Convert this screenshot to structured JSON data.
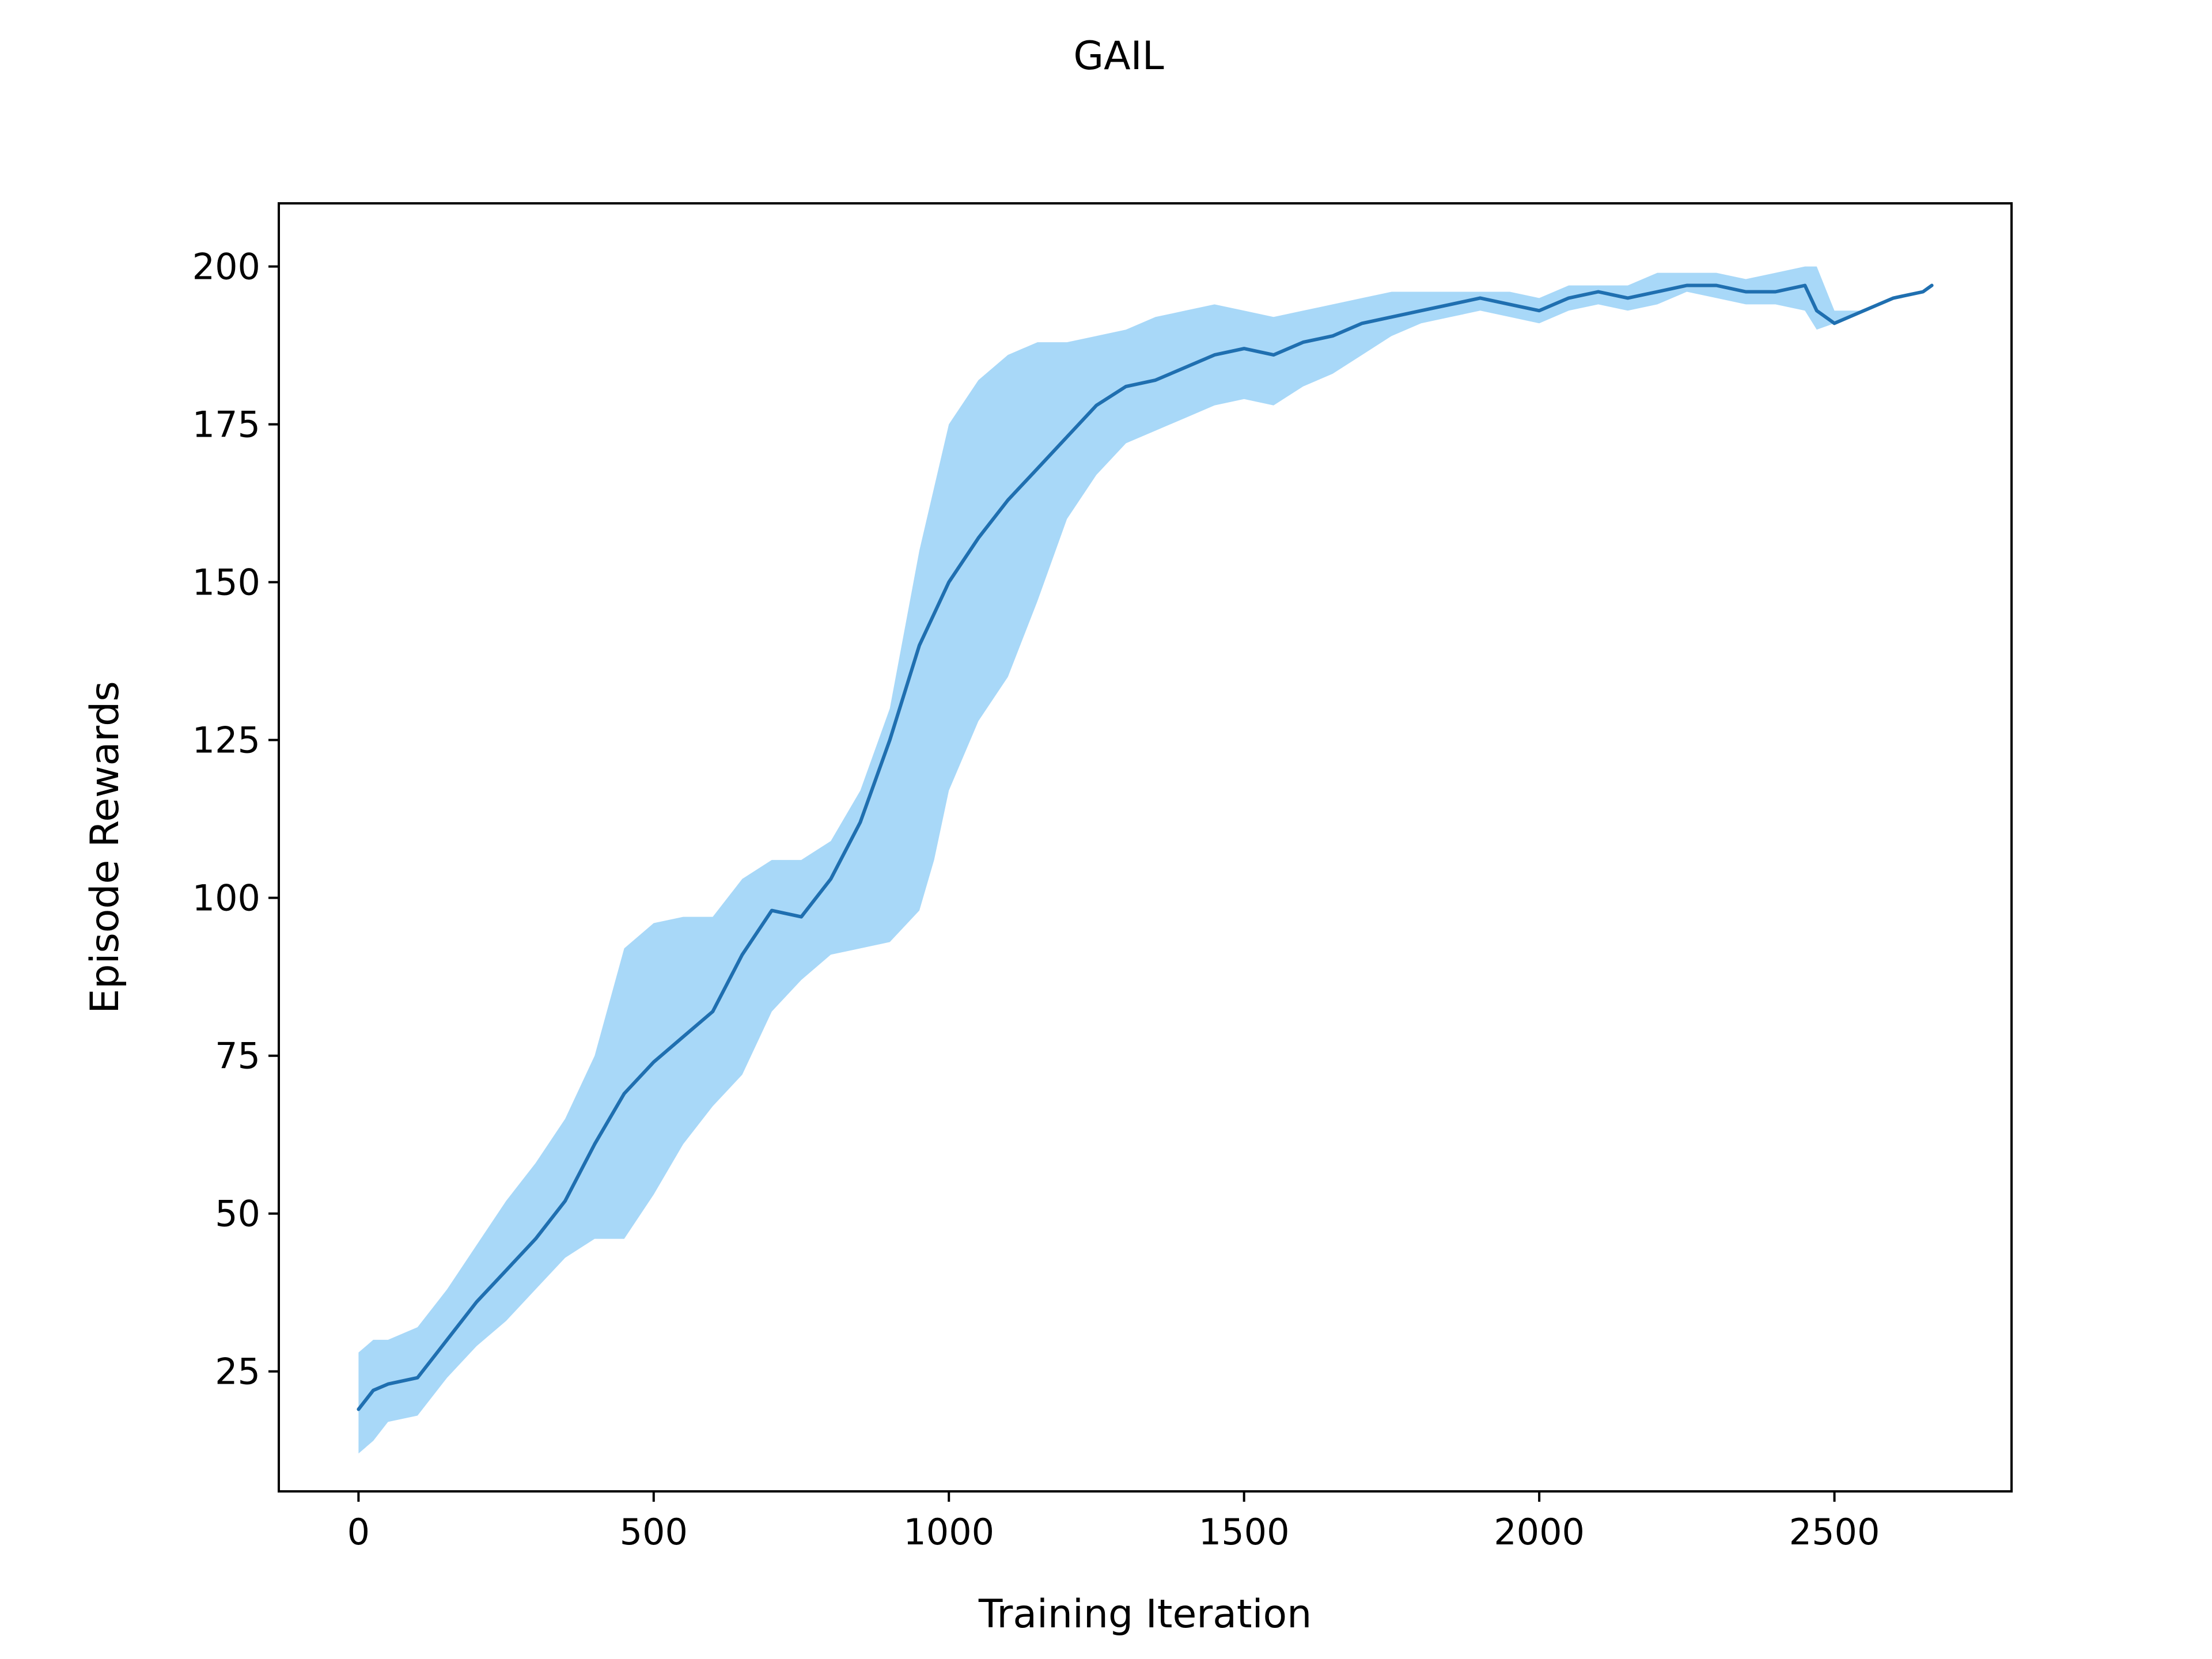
{
  "chart_data": {
    "type": "line",
    "title": "GAIL",
    "xlabel": "Training Iteration",
    "ylabel": "Episode Rewards",
    "xlim": [
      -135,
      2800
    ],
    "ylim": [
      6,
      210
    ],
    "xticks": [
      0,
      500,
      1000,
      1500,
      2000,
      2500
    ],
    "yticks": [
      25,
      50,
      75,
      100,
      125,
      150,
      175,
      200
    ],
    "grid": false,
    "legend": "none",
    "series": [
      {
        "style": "line-with-shaded-band",
        "line_color": "#1f6fb0",
        "band_color": "#a8d8f8",
        "x": [
          0,
          25,
          50,
          100,
          150,
          200,
          250,
          300,
          350,
          400,
          450,
          500,
          550,
          600,
          650,
          700,
          750,
          800,
          850,
          900,
          950,
          975,
          1000,
          1050,
          1100,
          1150,
          1200,
          1250,
          1300,
          1350,
          1400,
          1450,
          1500,
          1550,
          1600,
          1650,
          1700,
          1750,
          1800,
          1850,
          1900,
          1950,
          2000,
          2050,
          2100,
          2150,
          2200,
          2250,
          2300,
          2350,
          2400,
          2450,
          2470,
          2500,
          2550,
          2600,
          2650,
          2665
        ],
        "mean": [
          19,
          22,
          23,
          24,
          30,
          36,
          41,
          46,
          52,
          61,
          69,
          74,
          78,
          82,
          91,
          98,
          97,
          103,
          112,
          125,
          140,
          145,
          150,
          157,
          163,
          168,
          173,
          178,
          181,
          182,
          184,
          186,
          187,
          186,
          188,
          189,
          191,
          192,
          193,
          194,
          195,
          194,
          193,
          195,
          196,
          195,
          196,
          197,
          197,
          196,
          196,
          197,
          193,
          191,
          193,
          195,
          196,
          197
        ],
        "upper": [
          28,
          30,
          30,
          32,
          38,
          45,
          52,
          58,
          65,
          75,
          92,
          96,
          97,
          97,
          103,
          106,
          106,
          109,
          117,
          130,
          155,
          165,
          175,
          182,
          186,
          188,
          188,
          189,
          190,
          192,
          193,
          194,
          193,
          192,
          193,
          194,
          195,
          196,
          196,
          196,
          196,
          196,
          195,
          197,
          197,
          197,
          199,
          199,
          199,
          198,
          199,
          200,
          200,
          193,
          193,
          195,
          196,
          197
        ],
        "lower": [
          12,
          14,
          17,
          18,
          24,
          29,
          33,
          38,
          43,
          46,
          46,
          53,
          61,
          67,
          72,
          82,
          87,
          91,
          92,
          93,
          98,
          106,
          117,
          128,
          135,
          147,
          160,
          167,
          172,
          174,
          176,
          178,
          179,
          178,
          181,
          183,
          186,
          189,
          191,
          192,
          193,
          192,
          191,
          193,
          194,
          193,
          194,
          196,
          195,
          194,
          194,
          193,
          190,
          191,
          193,
          195,
          196,
          197
        ]
      }
    ]
  }
}
